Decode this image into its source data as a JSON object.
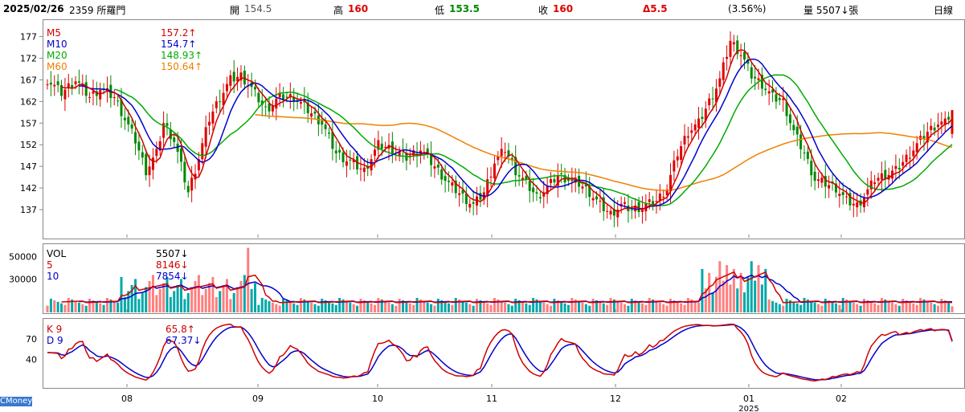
{
  "header": {
    "date": "2025/02/26",
    "stock": "2359 所羅門",
    "open_label": "開",
    "open": "154.5",
    "high_label": "高",
    "high": "160",
    "low_label": "低",
    "low": "153.5",
    "close_label": "收",
    "close": "160",
    "change": "Δ5.5",
    "change_pct": "(3.56%)",
    "volume": "量 5507↓張",
    "period": "日線",
    "brand": "CMoney"
  },
  "colors": {
    "up": "#e00000",
    "down": "#008800",
    "ma5": "#d00000",
    "ma10": "#0000cc",
    "ma20": "#00aa00",
    "ma60": "#f08000",
    "vol_up": "#ff7f7f",
    "vol_down": "#00a8a8"
  },
  "legend_price": [
    {
      "name": "M5",
      "value": "157.2↑",
      "color": "#d00000"
    },
    {
      "name": "M10",
      "value": "154.7↑",
      "color": "#0000cc"
    },
    {
      "name": "M20",
      "value": "148.93↑",
      "color": "#00aa00"
    },
    {
      "name": "M60",
      "value": "150.64↑",
      "color": "#f08000"
    }
  ],
  "legend_volume": [
    {
      "name": "VOL",
      "value": "5507↓",
      "color": "#000000"
    },
    {
      "name": "5",
      "value": "8146↓",
      "color": "#d00000"
    },
    {
      "name": "10",
      "value": "7854↓",
      "color": "#0000cc"
    }
  ],
  "legend_kd": [
    {
      "name": "K 9",
      "value": "65.8↑",
      "color": "#d00000"
    },
    {
      "name": "D 9",
      "value": "67.37↓",
      "color": "#0000cc"
    }
  ],
  "chart_data": [
    {
      "type": "candlestick",
      "y_ticks": [
        137,
        142,
        147,
        152,
        157,
        162,
        167,
        172,
        177
      ],
      "ylim": [
        130.5,
        181
      ],
      "x_ticks": [
        "08",
        "09",
        "10",
        "11",
        "12",
        "01",
        "02"
      ],
      "x_sublabel": "2025",
      "last_bar": {
        "open": 154.5,
        "high": 160,
        "low": 153.5,
        "close": 160
      },
      "ma": {
        "M5": 157.2,
        "M10": 154.7,
        "M20": 148.93,
        "M60": 150.64
      }
    },
    {
      "type": "bar",
      "y_ticks": [
        30000,
        50000
      ],
      "ylim": [
        0,
        62000
      ],
      "series": [
        {
          "name": "VOL",
          "last": 5507
        },
        {
          "name": "5",
          "last": 8146
        },
        {
          "name": "10",
          "last": 7854
        }
      ]
    },
    {
      "type": "line",
      "y_ticks": [
        40,
        70
      ],
      "ylim": [
        0,
        100
      ],
      "series": [
        {
          "name": "K 9",
          "last": 65.8
        },
        {
          "name": "D 9",
          "last": 67.37
        }
      ]
    }
  ]
}
